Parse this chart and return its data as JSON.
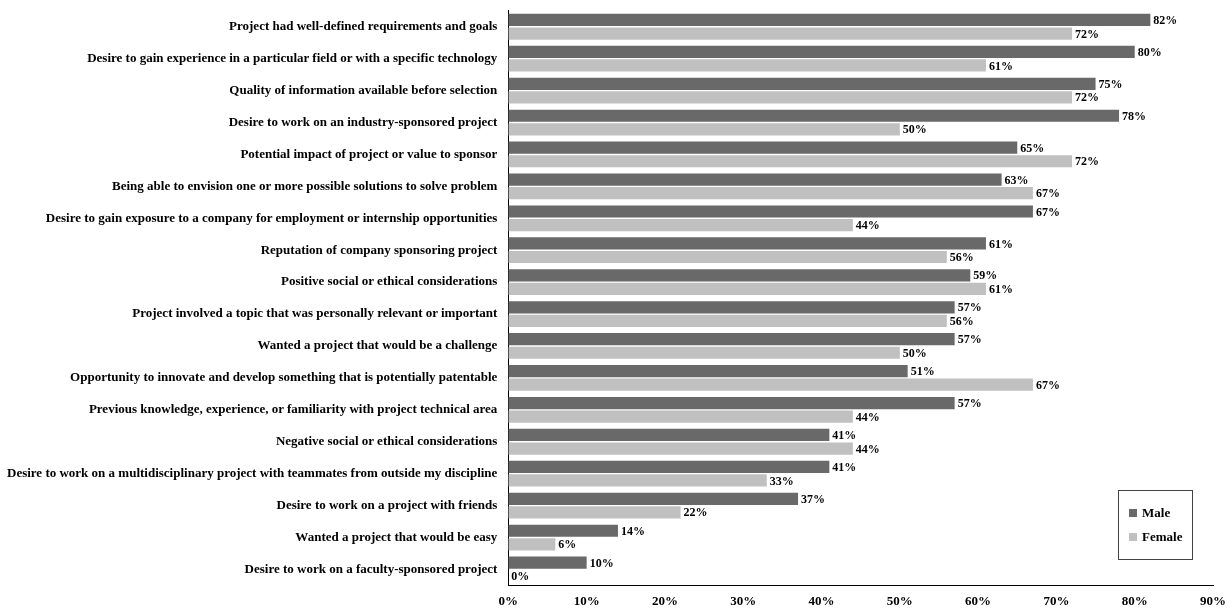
{
  "chart_data": {
    "type": "bar",
    "orientation": "horizontal",
    "categories": [
      "Project had well-defined requirements and goals",
      "Desire to gain experience in a particular field or with a specific technology",
      "Quality of information available before selection",
      "Desire to work on an industry-sponsored project",
      "Potential impact of project or value to sponsor",
      "Being able to envision one or more possible solutions to solve problem",
      "Desire to gain exposure to a company for employment or internship opportunities",
      "Reputation of company sponsoring project",
      "Positive social or ethical considerations",
      "Project involved a topic that was personally relevant or important",
      "Wanted a project that would be a challenge",
      "Opportunity to innovate and develop something that is potentially patentable",
      "Previous knowledge, experience, or familiarity with project technical area",
      "Negative social or ethical considerations",
      "Desire to work on a multidisciplinary project with teammates from outside my discipline",
      "Desire to work on a project with friends",
      "Wanted a project that would be easy",
      "Desire to work on a faculty-sponsored project"
    ],
    "series": [
      {
        "name": "Male",
        "color": "#696969",
        "values": [
          82,
          80,
          75,
          78,
          65,
          63,
          67,
          61,
          59,
          57,
          57,
          51,
          57,
          41,
          41,
          37,
          14,
          10
        ],
        "value_labels": [
          "82%",
          "80%",
          "75%",
          "78%",
          "65%",
          "63%",
          "67%",
          "61%",
          "59%",
          "57%",
          "57%",
          "51%",
          "57%",
          "41%",
          "41%",
          "37%",
          "14%",
          "10%"
        ]
      },
      {
        "name": "Female",
        "color": "#c0c0c0",
        "values": [
          72,
          61,
          72,
          50,
          72,
          67,
          44,
          56,
          61,
          56,
          50,
          67,
          44,
          44,
          33,
          22,
          6,
          0
        ],
        "value_labels": [
          "72%",
          "61%",
          "72%",
          "50%",
          "72%",
          "67%",
          "44%",
          "56%",
          "61%",
          "56%",
          "50%",
          "67%",
          "44%",
          "44%",
          "33%",
          "22%",
          "6%",
          "0%"
        ]
      }
    ],
    "xlim": [
      0,
      90
    ],
    "xticks": [
      {
        "value": 0,
        "label": "0%"
      },
      {
        "value": 10,
        "label": "10%"
      },
      {
        "value": 20,
        "label": "20%"
      },
      {
        "value": 30,
        "label": "30%"
      },
      {
        "value": 40,
        "label": "40%"
      },
      {
        "value": 50,
        "label": "50%"
      },
      {
        "value": 60,
        "label": "60%"
      },
      {
        "value": 70,
        "label": "70%"
      },
      {
        "value": 80,
        "label": "80%"
      },
      {
        "value": 90,
        "label": "90%"
      }
    ],
    "legend": "bottom right"
  }
}
